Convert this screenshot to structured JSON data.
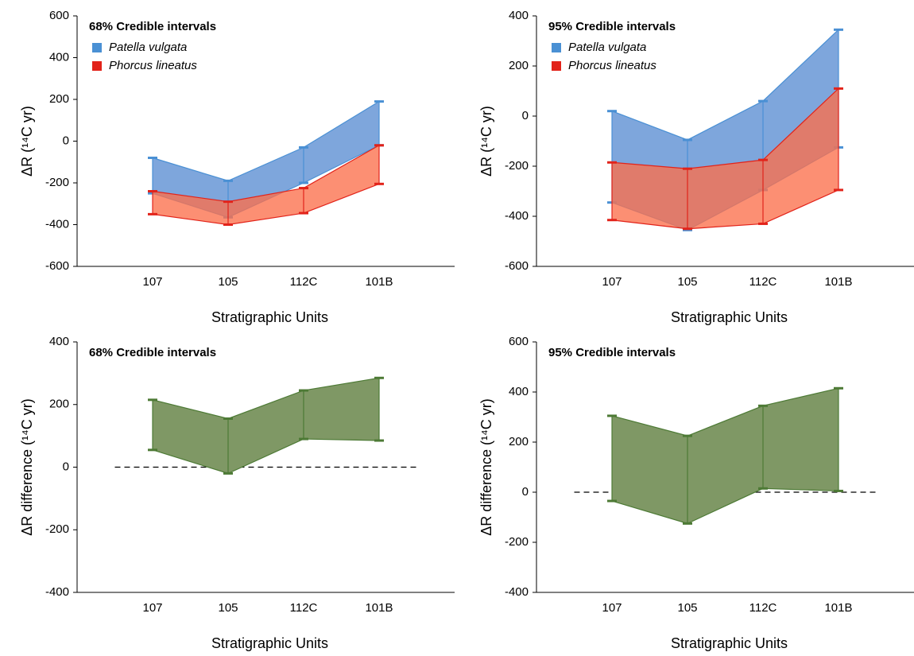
{
  "chart_data": [
    {
      "type": "range",
      "title": "68% Credible intervals",
      "xlabel": "Stratigraphic Units",
      "ylabel": "ΔR (¹⁴C yr)",
      "categories": [
        "107",
        "105",
        "112C",
        "101B"
      ],
      "ylim": [
        -600,
        600
      ],
      "yticks": [
        -600,
        -400,
        -200,
        0,
        200,
        400,
        600
      ],
      "legend": true,
      "series": [
        {
          "name": "Patella vulgata",
          "color": "#4a90d4",
          "fill": "#7ea6dc",
          "high": [
            -80,
            -190,
            -30,
            190
          ],
          "low": [
            -250,
            -365,
            -200,
            -20
          ]
        },
        {
          "name": "Phorcus lineatus",
          "color": "#e2231a",
          "fill": "#fb6f4c",
          "high": [
            -240,
            -290,
            -225,
            -20
          ],
          "low": [
            -350,
            -400,
            -345,
            -205
          ]
        }
      ]
    },
    {
      "type": "range",
      "title": "95% Credible intervals",
      "xlabel": "Stratigraphic Units",
      "ylabel": "ΔR (¹⁴C yr)",
      "categories": [
        "107",
        "105",
        "112C",
        "101B"
      ],
      "ylim": [
        -600,
        400
      ],
      "yticks": [
        -600,
        -400,
        -200,
        0,
        200,
        400
      ],
      "legend": true,
      "series": [
        {
          "name": "Patella vulgata",
          "color": "#4a90d4",
          "fill": "#7ea6dc",
          "high": [
            20,
            -95,
            60,
            345
          ],
          "low": [
            -345,
            -455,
            -295,
            -125
          ]
        },
        {
          "name": "Phorcus lineatus",
          "color": "#e2231a",
          "fill": "#fb6f4c",
          "high": [
            -185,
            -210,
            -175,
            110
          ],
          "low": [
            -415,
            -450,
            -430,
            -295
          ]
        }
      ]
    },
    {
      "type": "range",
      "title": "68% Credible intervals",
      "xlabel": "Stratigraphic Units",
      "ylabel": "ΔR difference (¹⁴C yr)",
      "categories": [
        "107",
        "105",
        "112C",
        "101B"
      ],
      "ylim": [
        -400,
        400
      ],
      "yticks": [
        -400,
        -200,
        0,
        200,
        400
      ],
      "legend": false,
      "hline": 0,
      "series": [
        {
          "color": "#4d7a35",
          "fill": "#7f9865",
          "high": [
            215,
            155,
            245,
            285
          ],
          "low": [
            55,
            -20,
            90,
            85
          ]
        }
      ]
    },
    {
      "type": "range",
      "title": "95% Credible intervals",
      "xlabel": "Stratigraphic Units",
      "ylabel": "ΔR difference (¹⁴C yr)",
      "categories": [
        "107",
        "105",
        "112C",
        "101B"
      ],
      "ylim": [
        -400,
        600
      ],
      "yticks": [
        -400,
        -200,
        0,
        200,
        400,
        600
      ],
      "legend": false,
      "hline": 0,
      "series": [
        {
          "color": "#4d7a35",
          "fill": "#7f9865",
          "high": [
            305,
            225,
            345,
            415
          ],
          "low": [
            -35,
            -125,
            15,
            5
          ]
        }
      ]
    }
  ]
}
